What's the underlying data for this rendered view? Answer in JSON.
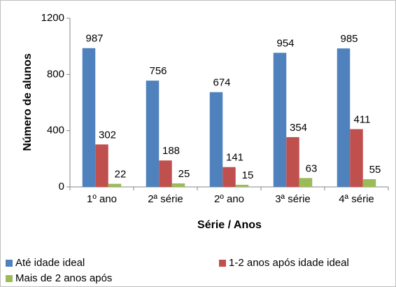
{
  "chart_data": {
    "type": "bar",
    "categories": [
      "1º ano",
      "2ª série",
      "2º ano",
      "3ª série",
      "4ª série"
    ],
    "series": [
      {
        "name": "Até idade ideal",
        "color": "#4f81bd",
        "values": [
          987,
          756,
          674,
          954,
          985
        ]
      },
      {
        "name": "1-2 anos após idade ideal",
        "color": "#c0504d",
        "values": [
          302,
          188,
          141,
          354,
          411
        ]
      },
      {
        "name": "Mais de 2 anos após",
        "color": "#9bbb59",
        "values": [
          22,
          25,
          15,
          63,
          55
        ]
      }
    ],
    "xlabel": "Série / Anos",
    "ylabel": "Número de alunos",
    "ylim": [
      0,
      1200
    ],
    "yticks": [
      0,
      400,
      800,
      1200
    ],
    "grid": false,
    "legend": "bottom"
  }
}
